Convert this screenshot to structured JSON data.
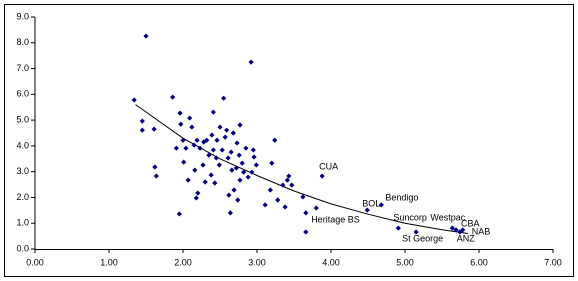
{
  "chart_data": {
    "type": "scatter",
    "xlim": [
      0,
      7
    ],
    "ylim": [
      0,
      9
    ],
    "xticks": [
      {
        "value": 0,
        "label": "0.00"
      },
      {
        "value": 1,
        "label": "1.00"
      },
      {
        "value": 2,
        "label": "2.00"
      },
      {
        "value": 3,
        "label": "3.00"
      },
      {
        "value": 4,
        "label": "4.00"
      },
      {
        "value": 5,
        "label": "5.00"
      },
      {
        "value": 6,
        "label": "6.00"
      },
      {
        "value": 7,
        "label": "7.00"
      }
    ],
    "yticks": [
      {
        "value": 0,
        "label": "0.0"
      },
      {
        "value": 1,
        "label": "1.0"
      },
      {
        "value": 2,
        "label": "2.0"
      },
      {
        "value": 3,
        "label": "3.0"
      },
      {
        "value": 4,
        "label": "4.0"
      },
      {
        "value": 5,
        "label": "5.0"
      },
      {
        "value": 6,
        "label": "6.0"
      },
      {
        "value": 7,
        "label": "7.0"
      },
      {
        "value": 8,
        "label": "8.0"
      },
      {
        "value": 9,
        "label": "9.0"
      }
    ],
    "grid": false,
    "series": [
      {
        "color": "#000080",
        "x": [
          1.34,
          1.5,
          1.45,
          1.45,
          1.61,
          1.62,
          1.64,
          1.86,
          1.91,
          1.95,
          1.96,
          1.97,
          2.0,
          2.01,
          2.04,
          2.07,
          2.09,
          2.12,
          2.15,
          2.16,
          2.18,
          2.19,
          2.2,
          2.23,
          2.27,
          2.28,
          2.3,
          2.32,
          2.35,
          2.38,
          2.39,
          2.41,
          2.41,
          2.43,
          2.45,
          2.46,
          2.49,
          2.5,
          2.53,
          2.55,
          2.57,
          2.59,
          2.61,
          2.62,
          2.64,
          2.65,
          2.66,
          2.68,
          2.69,
          2.72,
          2.73,
          2.74,
          2.76,
          2.77,
          2.77,
          2.8,
          2.82,
          2.85,
          2.88,
          2.92,
          2.93,
          2.95,
          2.96,
          2.99,
          3.11,
          3.18,
          3.2,
          3.24,
          3.28,
          3.35,
          3.38,
          3.41,
          3.43,
          3.47,
          3.62,
          3.66,
          3.66
        ],
        "y": [
          5.78,
          8.26,
          4.96,
          4.61,
          4.65,
          3.18,
          2.83,
          5.89,
          3.91,
          1.36,
          5.27,
          4.84,
          4.22,
          3.37,
          3.91,
          2.67,
          5.08,
          4.73,
          4.03,
          3.06,
          1.98,
          4.22,
          2.17,
          3.91,
          3.26,
          4.15,
          2.6,
          4.22,
          3.64,
          2.87,
          4.42,
          5.31,
          3.84,
          2.56,
          3.53,
          4.22,
          3.26,
          4.73,
          3.84,
          5.85,
          4.34,
          4.61,
          3.53,
          2.09,
          1.4,
          3.76,
          3.06,
          4.5,
          2.29,
          3.14,
          4.11,
          1.9,
          3.64,
          4.81,
          2.67,
          3.33,
          2.98,
          3.91,
          2.79,
          7.25,
          2.98,
          3.84,
          3.57,
          3.26,
          1.71,
          2.29,
          3.33,
          4.22,
          1.9,
          2.48,
          1.63,
          2.67,
          2.83,
          2.48,
          2.02,
          0.66,
          1.4
        ]
      },
      {
        "color": "#000080",
        "x": [
          3.8,
          3.88,
          4.49,
          4.68,
          4.91,
          5.15,
          5.64,
          5.69,
          5.74,
          5.78
        ],
        "y": [
          1.59,
          2.83,
          1.51,
          1.71,
          0.81,
          0.66,
          0.81,
          0.74,
          0.66,
          0.74
        ],
        "labels": [
          "Heritage BS",
          "CUA",
          "BOL",
          "Bendigo",
          "Suncorp",
          "St George",
          "Westpac",
          "CBA",
          "ANZ",
          "NAB"
        ]
      }
    ],
    "trendline": {
      "color": "#000000",
      "x": [
        1.36,
        2.0,
        2.5,
        3.0,
        3.5,
        4.0,
        4.5,
        5.0,
        5.5,
        5.85
      ],
      "y": [
        5.6,
        4.3,
        3.5,
        2.85,
        2.25,
        1.75,
        1.35,
        1.0,
        0.75,
        0.6
      ]
    }
  }
}
